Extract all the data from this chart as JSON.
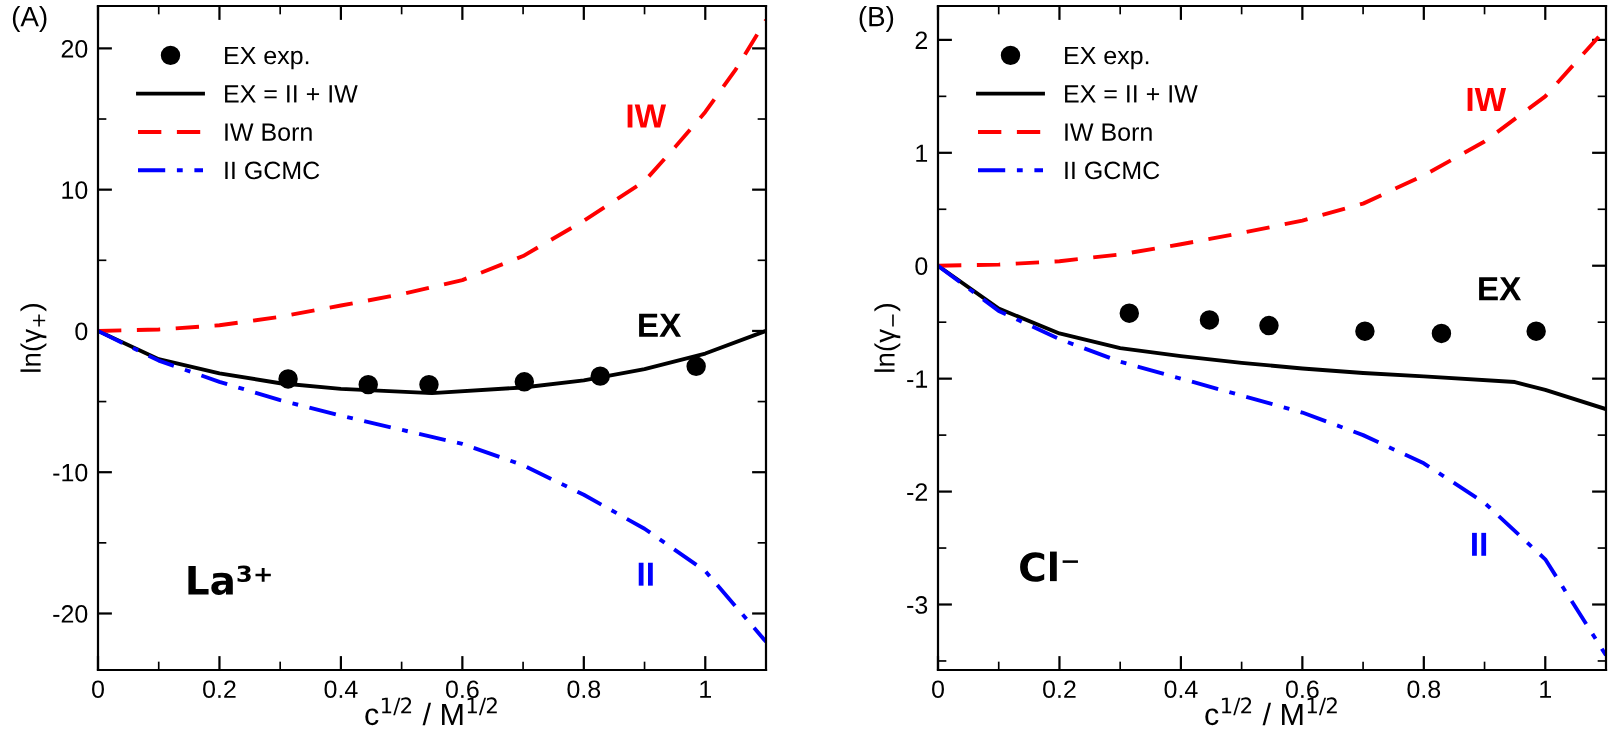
{
  "chart_data": [
    {
      "type": "line",
      "title": "(A)",
      "xlabel": "c$^{1/2}$ / M$^{1/2}$",
      "ylabel": "ln(γ$_{+}$)",
      "xlim": [
        0,
        1.1
      ],
      "ylim": [
        -24,
        23
      ],
      "xticks": [
        0,
        0.2,
        0.4,
        0.6,
        0.8,
        1
      ],
      "yticks": [
        -20,
        -10,
        0,
        10,
        20
      ],
      "grid": false,
      "legend": "top left",
      "series": [
        {
          "name": "EX exp.",
          "type": "scatter",
          "marker": "circle",
          "color": "#000000",
          "x": [
            0.313,
            0.445,
            0.545,
            0.702,
            0.827,
            0.985
          ],
          "values": [
            -3.4,
            -3.8,
            -3.8,
            -3.6,
            -3.2,
            -2.5
          ]
        },
        {
          "name": "EX = II + IW",
          "line_style": "solid",
          "color": "#000000",
          "x": [
            0,
            0.1,
            0.2,
            0.3,
            0.4,
            0.55,
            0.7,
            0.8,
            0.9,
            1.0,
            1.1
          ],
          "values": [
            0,
            -2.0,
            -3.0,
            -3.7,
            -4.1,
            -4.4,
            -4.0,
            -3.5,
            -2.7,
            -1.6,
            0
          ]
        },
        {
          "name": "IW Born",
          "line_style": "dashed",
          "color": "#ff0000",
          "x": [
            0,
            0.1,
            0.2,
            0.3,
            0.4,
            0.5,
            0.6,
            0.7,
            0.8,
            0.9,
            0.95,
            1.0,
            1.05,
            1.1
          ],
          "values": [
            0,
            0.1,
            0.4,
            1.0,
            1.8,
            2.6,
            3.6,
            5.3,
            7.8,
            10.6,
            13,
            15.5,
            18.5,
            22
          ]
        },
        {
          "name": "II GCMC",
          "line_style": "dashdot",
          "color": "#0000ff",
          "x": [
            0,
            0.1,
            0.2,
            0.3,
            0.4,
            0.5,
            0.6,
            0.7,
            0.8,
            0.9,
            1.0,
            1.1
          ],
          "values": [
            0,
            -2.1,
            -3.6,
            -4.9,
            -6.0,
            -7.0,
            -8.0,
            -9.5,
            -11.6,
            -14,
            -17,
            -22
          ]
        }
      ],
      "annotations": [
        "EX",
        "IW",
        "II",
        "La³⁺"
      ]
    },
    {
      "type": "line",
      "title": "(B)",
      "xlabel": "c$^{1/2}$ / M$^{1/2}$",
      "ylabel": "ln(γ$_{−}$)",
      "xlim": [
        0,
        1.1
      ],
      "ylim": [
        -3.58,
        2.3
      ],
      "xticks": [
        0,
        0.2,
        0.4,
        0.6,
        0.8,
        1
      ],
      "yticks": [
        -3,
        -2,
        -1,
        0,
        1,
        2
      ],
      "grid": false,
      "legend": "top left",
      "series": [
        {
          "name": "EX exp.",
          "type": "scatter",
          "marker": "circle",
          "color": "#000000",
          "x": [
            0.315,
            0.447,
            0.545,
            0.703,
            0.829,
            0.985
          ],
          "values": [
            -0.42,
            -0.48,
            -0.53,
            -0.58,
            -0.6,
            -0.58
          ]
        },
        {
          "name": "EX = II + IW",
          "line_style": "solid",
          "color": "#000000",
          "x": [
            0,
            0.1,
            0.2,
            0.3,
            0.4,
            0.5,
            0.6,
            0.7,
            0.8,
            0.95,
            1.0,
            1.1
          ],
          "values": [
            0,
            -0.38,
            -0.6,
            -0.73,
            -0.8,
            -0.86,
            -0.91,
            -0.95,
            -0.98,
            -1.03,
            -1.1,
            -1.27
          ]
        },
        {
          "name": "IW Born",
          "line_style": "dashed",
          "color": "#ff0000",
          "x": [
            0,
            0.1,
            0.2,
            0.3,
            0.4,
            0.5,
            0.6,
            0.7,
            0.8,
            0.9,
            1.0,
            1.1
          ],
          "values": [
            0,
            0.01,
            0.04,
            0.1,
            0.19,
            0.29,
            0.4,
            0.55,
            0.8,
            1.1,
            1.5,
            2.1
          ]
        },
        {
          "name": "II GCMC",
          "line_style": "dashdot",
          "color": "#0000ff",
          "x": [
            0,
            0.1,
            0.2,
            0.3,
            0.4,
            0.5,
            0.6,
            0.7,
            0.8,
            0.9,
            1.0,
            1.1
          ],
          "values": [
            0,
            -0.4,
            -0.65,
            -0.85,
            -1.0,
            -1.15,
            -1.3,
            -1.5,
            -1.75,
            -2.1,
            -2.6,
            -3.45
          ]
        }
      ],
      "annotations": [
        "EX",
        "IW",
        "II",
        "Cl⁻"
      ]
    }
  ]
}
